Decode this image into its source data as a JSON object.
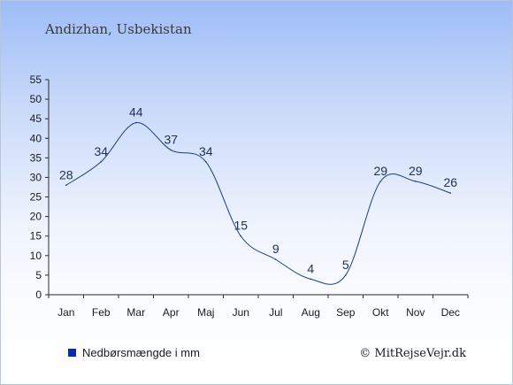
{
  "chart_data": {
    "type": "line",
    "title": "Andizhan, Usbekistan",
    "categories": [
      "Jan",
      "Feb",
      "Mar",
      "Apr",
      "Maj",
      "Jun",
      "Jul",
      "Aug",
      "Sep",
      "Okt",
      "Nov",
      "Dec"
    ],
    "series": [
      {
        "name": "Nedbørsmængde i mm",
        "values": [
          28,
          34,
          44,
          37,
          34,
          15,
          9,
          4,
          5,
          29,
          29,
          26
        ]
      }
    ],
    "ylim": [
      0,
      55
    ],
    "yticks": [
      0,
      5,
      10,
      15,
      20,
      25,
      30,
      35,
      40,
      45,
      50,
      55
    ],
    "grid": false,
    "legend_position": "bottom-left",
    "colors": {
      "line": "#1a3b8c",
      "labels": "#1e2e55",
      "axis": "#2b2b2b",
      "legend_marker": "#0a2aa8"
    }
  },
  "copyright": "© MitRejseVejr.dk"
}
